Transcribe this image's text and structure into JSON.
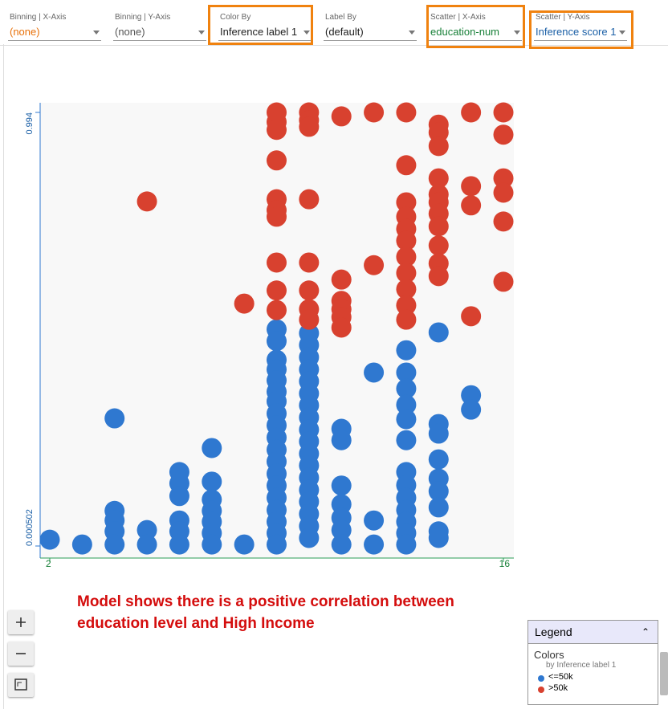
{
  "toolbar": {
    "controls": [
      {
        "label": "Binning | X-Axis",
        "value": "(none)"
      },
      {
        "label": "Binning | Y-Axis",
        "value": "(none)"
      },
      {
        "label": "Color By",
        "value": "Inference label 1"
      },
      {
        "label": "Label By",
        "value": "(default)"
      },
      {
        "label": "Scatter | X-Axis",
        "value": "education-num"
      },
      {
        "label": "Scatter | Y-Axis",
        "value": "Inference score 1"
      }
    ]
  },
  "chart_data": {
    "type": "scatter",
    "xlim": [
      2,
      16
    ],
    "xticks": [
      2,
      16
    ],
    "ylim": [
      0.000502,
      0.994
    ],
    "yticks": [
      0.000502,
      0.994
    ],
    "series": [
      {
        "name": "<=50k",
        "color": "#2f78d0",
        "x": [
          2,
          3,
          4,
          4,
          4,
          4,
          4,
          5,
          5,
          6,
          6,
          6,
          6,
          6,
          6,
          7,
          7,
          7,
          7,
          7,
          7,
          7,
          8,
          9,
          9,
          9,
          9,
          9,
          9,
          9,
          9,
          9,
          9,
          9,
          9,
          9,
          9,
          9,
          9,
          9,
          9,
          9,
          10,
          10,
          10,
          10,
          10,
          10,
          10,
          10,
          10,
          10,
          10,
          10,
          10,
          10,
          10,
          10,
          10,
          10,
          11,
          11,
          11,
          11,
          11,
          11,
          11,
          12,
          12,
          12,
          13,
          13,
          13,
          13,
          13,
          13,
          13,
          13,
          13,
          13,
          13,
          13,
          13,
          14,
          14,
          14,
          14,
          14,
          14,
          14,
          14,
          14,
          15,
          15
        ],
        "y": [
          0.015,
          0.004,
          0.293,
          0.081,
          0.059,
          0.034,
          0.004,
          0.037,
          0.004,
          0.17,
          0.144,
          0.115,
          0.059,
          0.034,
          0.004,
          0.225,
          0.148,
          0.107,
          0.081,
          0.056,
          0.03,
          0.004,
          0.004,
          0.497,
          0.47,
          0.427,
          0.405,
          0.38,
          0.354,
          0.332,
          0.304,
          0.277,
          0.249,
          0.221,
          0.194,
          0.166,
          0.139,
          0.111,
          0.083,
          0.056,
          0.03,
          0.004,
          0.488,
          0.461,
          0.433,
          0.405,
          0.378,
          0.35,
          0.323,
          0.295,
          0.267,
          0.24,
          0.212,
          0.185,
          0.157,
          0.129,
          0.102,
          0.074,
          0.046,
          0.019,
          0.269,
          0.243,
          0.139,
          0.096,
          0.065,
          0.037,
          0.004,
          0.398,
          0.059,
          0.004,
          0.449,
          0.398,
          0.361,
          0.324,
          0.291,
          0.243,
          0.17,
          0.14,
          0.111,
          0.083,
          0.056,
          0.03,
          0.004,
          0.49,
          0.28,
          0.258,
          0.199,
          0.155,
          0.126,
          0.089,
          0.034,
          0.019,
          0.346,
          0.313
        ]
      },
      {
        "name": ">50k",
        "color": "#d8412f",
        "x": [
          5,
          8,
          9,
          9,
          9,
          9,
          9,
          9,
          9,
          9,
          9,
          9,
          10,
          10,
          10,
          10,
          10,
          10,
          10,
          10,
          11,
          11,
          11,
          11,
          11,
          11,
          12,
          12,
          13,
          13,
          13,
          13,
          13,
          13,
          13,
          13,
          13,
          13,
          13,
          14,
          14,
          14,
          14,
          14,
          14,
          14,
          14,
          14,
          14,
          14,
          15,
          15,
          15,
          15,
          16,
          16,
          16,
          16,
          16,
          16
        ],
        "y": [
          0.79,
          0.556,
          0.994,
          0.972,
          0.954,
          0.884,
          0.795,
          0.77,
          0.755,
          0.65,
          0.586,
          0.541,
          0.994,
          0.976,
          0.961,
          0.795,
          0.65,
          0.586,
          0.543,
          0.519,
          0.985,
          0.611,
          0.562,
          0.543,
          0.525,
          0.501,
          0.994,
          0.644,
          0.994,
          0.873,
          0.788,
          0.755,
          0.727,
          0.7,
          0.663,
          0.626,
          0.589,
          0.552,
          0.519,
          0.966,
          0.948,
          0.917,
          0.843,
          0.806,
          0.788,
          0.762,
          0.733,
          0.689,
          0.648,
          0.619,
          0.994,
          0.825,
          0.781,
          0.527,
          0.994,
          0.943,
          0.843,
          0.81,
          0.744,
          0.606
        ]
      }
    ]
  },
  "annotation": "Model shows there is a positive correlation between education level and High Income",
  "legend": {
    "title": "Legend",
    "section": "Colors",
    "subtitle": "by Inference label 1"
  }
}
